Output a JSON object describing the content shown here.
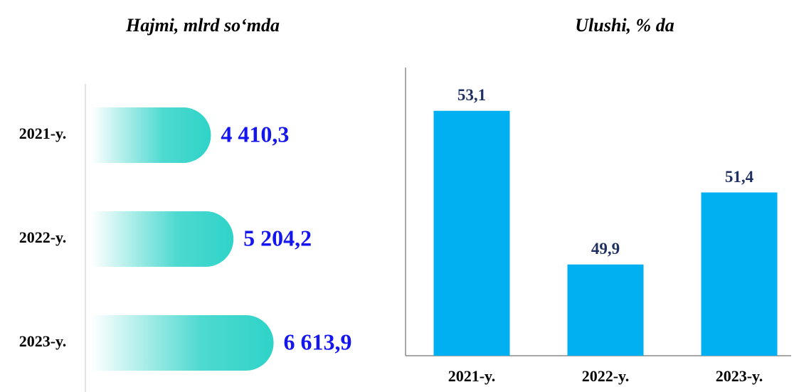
{
  "chart_data": [
    {
      "type": "hbar",
      "title": "Hajmi, mlrd so‘mda",
      "categories": [
        "2021-y.",
        "2022-y.",
        "2023-y."
      ],
      "values": [
        4410.3,
        5204.2,
        6613.9
      ],
      "value_labels": [
        "4 410,3",
        "5 204,2",
        "6 613,9"
      ],
      "color": "#2fd3c8",
      "xlim": [
        0,
        7000
      ]
    },
    {
      "type": "bar",
      "title": "Ulushi, % da",
      "categories": [
        "2021-y.",
        "2022-y.",
        "2023-y."
      ],
      "values": [
        53.1,
        49.9,
        51.4
      ],
      "value_labels": [
        "53,1",
        "49,9",
        "51,4"
      ],
      "color": "#00b0f0",
      "ylim": [
        48,
        54
      ]
    }
  ]
}
